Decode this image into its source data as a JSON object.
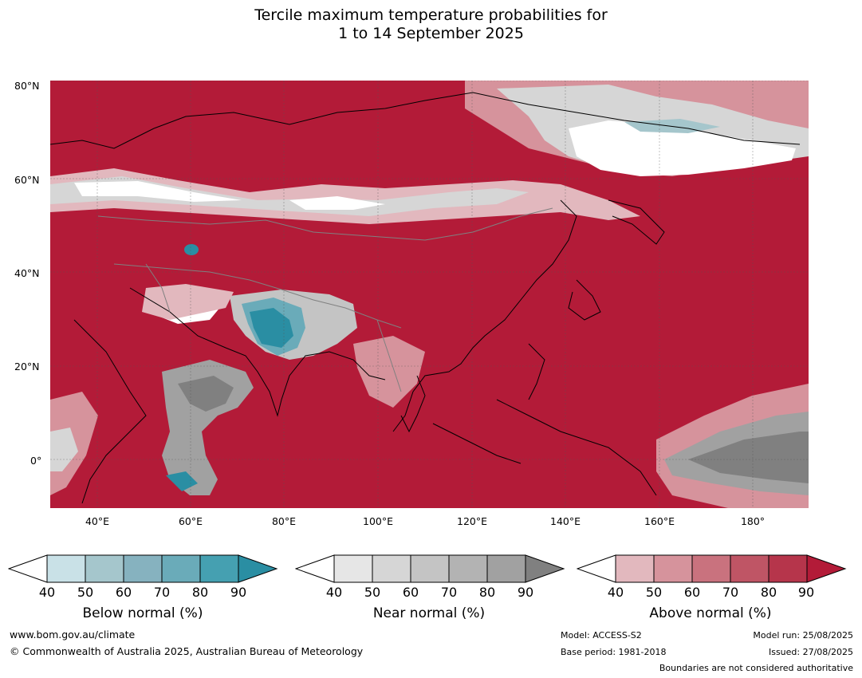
{
  "title": {
    "line1": "Tercile maximum temperature probabilities for",
    "line2": "1 to 14 September 2025"
  },
  "map": {
    "latitude_labels": [
      "80°N",
      "60°N",
      "40°N",
      "20°N",
      "0°"
    ],
    "longitude_labels": [
      "40°E",
      "60°E",
      "80°E",
      "100°E",
      "120°E",
      "140°E",
      "160°E",
      "180°"
    ],
    "dominant_fill_color": "#b31b38"
  },
  "legends": {
    "below": {
      "title": "Below normal (%)",
      "ticks": [
        "40",
        "50",
        "60",
        "70",
        "80",
        "90"
      ],
      "colors": [
        "#ffffff",
        "#c9e1e7",
        "#a5c6cc",
        "#86b2bf",
        "#6aabb9",
        "#45a0b1",
        "#2a8ea3"
      ]
    },
    "near": {
      "title": "Near normal (%)",
      "ticks": [
        "40",
        "50",
        "60",
        "70",
        "80",
        "90"
      ],
      "colors": [
        "#ffffff",
        "#e6e6e6",
        "#d6d6d6",
        "#c4c4c4",
        "#b3b3b3",
        "#a1a1a1",
        "#808080"
      ]
    },
    "above": {
      "title": "Above normal (%)",
      "ticks": [
        "40",
        "50",
        "60",
        "70",
        "80",
        "90"
      ],
      "colors": [
        "#ffffff",
        "#e2b8be",
        "#d6939c",
        "#c9727e",
        "#bf5565",
        "#b6354b",
        "#b31b38"
      ]
    }
  },
  "footer": {
    "url": "www.bom.gov.au/climate",
    "copyright": "© Commonwealth of Australia 2025, Australian Bureau of Meteorology",
    "model": "Model: ACCESS-S2",
    "base_period": "Base period: 1981-2018",
    "model_run": "Model run: 25/08/2025",
    "issued": "Issued: 27/08/2025",
    "disclaimer": "Boundaries are not considered authoritative"
  }
}
